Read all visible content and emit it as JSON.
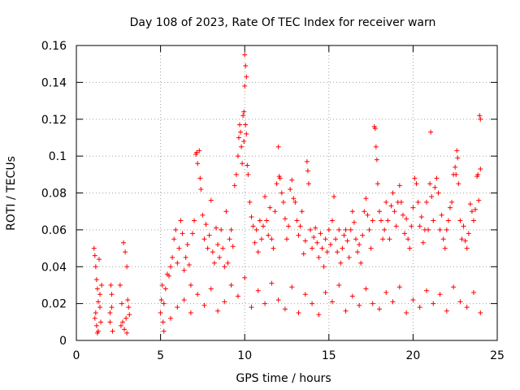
{
  "chart_data": {
    "type": "scatter",
    "title": "Day 108 of 2023, Rate Of TEC Index for receiver warn",
    "xlabel": "GPS time / hours",
    "ylabel": "ROTI / TECUs",
    "xlim": [
      0,
      25
    ],
    "ylim": [
      0,
      0.16
    ],
    "xticks": [
      0,
      5,
      10,
      15,
      20,
      25
    ],
    "yticks": [
      0,
      0.02,
      0.04,
      0.06,
      0.08,
      0.1,
      0.12,
      0.14,
      0.16
    ],
    "xtick_labels": [
      "0",
      "5",
      "10",
      "15",
      "20",
      "25"
    ],
    "ytick_labels": [
      "0",
      "0.02",
      "0.04",
      "0.06",
      "0.08",
      "0.1",
      "0.12",
      "0.14",
      "0.16"
    ],
    "grid": true,
    "marker": "+",
    "color": "#ff0000",
    "series": [
      {
        "points": [
          [
            1.05,
            0.05
          ],
          [
            1.1,
            0.046
          ],
          [
            1.15,
            0.04
          ],
          [
            1.2,
            0.033
          ],
          [
            1.25,
            0.028
          ],
          [
            1.3,
            0.021
          ],
          [
            1.35,
            0.044
          ],
          [
            1.4,
            0.018
          ],
          [
            1.1,
            0.012
          ],
          [
            1.2,
            0.008
          ],
          [
            1.3,
            0.005
          ],
          [
            1.4,
            0.025
          ],
          [
            1.5,
            0.03
          ],
          [
            1.15,
            0.015
          ],
          [
            1.45,
            0.01
          ],
          [
            1.25,
            0.004
          ],
          [
            2.0,
            0.015
          ],
          [
            2.05,
            0.03
          ],
          [
            2.1,
            0.025
          ],
          [
            2.15,
            0.005
          ],
          [
            2.0,
            0.01
          ],
          [
            2.1,
            0.018
          ],
          [
            2.6,
            0.03
          ],
          [
            2.7,
            0.02
          ],
          [
            2.8,
            0.053
          ],
          [
            2.9,
            0.048
          ],
          [
            3.0,
            0.04
          ],
          [
            3.05,
            0.022
          ],
          [
            3.1,
            0.018
          ],
          [
            2.75,
            0.01
          ],
          [
            2.85,
            0.006
          ],
          [
            2.95,
            0.012
          ],
          [
            3.15,
            0.014
          ],
          [
            2.65,
            0.008
          ],
          [
            3.0,
            0.004
          ],
          [
            5.0,
            0.015
          ],
          [
            5.05,
            0.022
          ],
          [
            5.1,
            0.03
          ],
          [
            5.15,
            0.01
          ],
          [
            5.2,
            0.005
          ],
          [
            5.3,
            0.028
          ],
          [
            5.4,
            0.036
          ],
          [
            5.5,
            0.035
          ],
          [
            5.6,
            0.04
          ],
          [
            5.7,
            0.045
          ],
          [
            5.8,
            0.055
          ],
          [
            5.9,
            0.06
          ],
          [
            6.0,
            0.042
          ],
          [
            6.1,
            0.05
          ],
          [
            6.2,
            0.065
          ],
          [
            6.3,
            0.058
          ],
          [
            6.4,
            0.038
          ],
          [
            6.5,
            0.045
          ],
          [
            6.6,
            0.052
          ],
          [
            6.7,
            0.041
          ],
          [
            6.8,
            0.03
          ],
          [
            6.9,
            0.058
          ],
          [
            7.0,
            0.065
          ],
          [
            7.1,
            0.101
          ],
          [
            7.15,
            0.102
          ],
          [
            7.2,
            0.096
          ],
          [
            7.3,
            0.103
          ],
          [
            7.35,
            0.088
          ],
          [
            7.4,
            0.082
          ],
          [
            7.5,
            0.068
          ],
          [
            7.6,
            0.055
          ],
          [
            7.7,
            0.063
          ],
          [
            7.8,
            0.05
          ],
          [
            7.9,
            0.057
          ],
          [
            8.0,
            0.076
          ],
          [
            8.1,
            0.048
          ],
          [
            8.2,
            0.042
          ],
          [
            8.3,
            0.061
          ],
          [
            8.4,
            0.052
          ],
          [
            8.5,
            0.045
          ],
          [
            8.6,
            0.06
          ],
          [
            8.7,
            0.05
          ],
          [
            8.8,
            0.04
          ],
          [
            8.9,
            0.07
          ],
          [
            9.0,
            0.042
          ],
          [
            9.1,
            0.055
          ],
          [
            9.2,
            0.06
          ],
          [
            9.3,
            0.051
          ],
          [
            9.4,
            0.084
          ],
          [
            9.5,
            0.09
          ],
          [
            9.6,
            0.1
          ],
          [
            9.65,
            0.11
          ],
          [
            9.7,
            0.117
          ],
          [
            9.75,
            0.113
          ],
          [
            9.8,
            0.105
          ],
          [
            9.85,
            0.096
          ],
          [
            9.9,
            0.122
          ],
          [
            9.95,
            0.124
          ],
          [
            10.0,
            0.155
          ],
          [
            10.05,
            0.149
          ],
          [
            10.1,
            0.143
          ],
          [
            10.0,
            0.138
          ],
          [
            10.05,
            0.117
          ],
          [
            10.1,
            0.112
          ],
          [
            9.95,
            0.108
          ],
          [
            10.15,
            0.095
          ],
          [
            10.2,
            0.09
          ],
          [
            10.3,
            0.075
          ],
          [
            10.4,
            0.067
          ],
          [
            10.5,
            0.062
          ],
          [
            10.6,
            0.053
          ],
          [
            10.7,
            0.06
          ],
          [
            10.8,
            0.048
          ],
          [
            10.9,
            0.065
          ],
          [
            11.0,
            0.055
          ],
          [
            11.1,
            0.062
          ],
          [
            11.2,
            0.078
          ],
          [
            11.3,
            0.065
          ],
          [
            11.4,
            0.057
          ],
          [
            11.5,
            0.072
          ],
          [
            11.6,
            0.055
          ],
          [
            11.7,
            0.05
          ],
          [
            11.8,
            0.07
          ],
          [
            11.9,
            0.085
          ],
          [
            12.0,
            0.105
          ],
          [
            12.05,
            0.089
          ],
          [
            12.1,
            0.088
          ],
          [
            12.2,
            0.08
          ],
          [
            12.3,
            0.075
          ],
          [
            12.4,
            0.066
          ],
          [
            12.5,
            0.055
          ],
          [
            12.6,
            0.062
          ],
          [
            12.7,
            0.082
          ],
          [
            12.8,
            0.087
          ],
          [
            12.9,
            0.077
          ],
          [
            13.0,
            0.075
          ],
          [
            13.1,
            0.065
          ],
          [
            13.2,
            0.057
          ],
          [
            13.3,
            0.062
          ],
          [
            13.4,
            0.07
          ],
          [
            13.5,
            0.047
          ],
          [
            13.6,
            0.054
          ],
          [
            13.7,
            0.097
          ],
          [
            13.75,
            0.092
          ],
          [
            13.8,
            0.085
          ],
          [
            13.9,
            0.06
          ],
          [
            14.0,
            0.05
          ],
          [
            14.1,
            0.056
          ],
          [
            14.2,
            0.061
          ],
          [
            14.3,
            0.053
          ],
          [
            14.4,
            0.045
          ],
          [
            14.5,
            0.058
          ],
          [
            14.6,
            0.05
          ],
          [
            14.7,
            0.04
          ],
          [
            14.8,
            0.055
          ],
          [
            14.9,
            0.048
          ],
          [
            15.0,
            0.06
          ],
          [
            15.1,
            0.052
          ],
          [
            15.2,
            0.065
          ],
          [
            15.3,
            0.078
          ],
          [
            15.4,
            0.055
          ],
          [
            15.5,
            0.048
          ],
          [
            15.6,
            0.06
          ],
          [
            15.7,
            0.042
          ],
          [
            15.8,
            0.05
          ],
          [
            15.9,
            0.057
          ],
          [
            16.0,
            0.06
          ],
          [
            16.1,
            0.054
          ],
          [
            16.2,
            0.045
          ],
          [
            16.3,
            0.06
          ],
          [
            16.4,
            0.07
          ],
          [
            16.5,
            0.064
          ],
          [
            16.6,
            0.055
          ],
          [
            16.7,
            0.048
          ],
          [
            16.8,
            0.052
          ],
          [
            16.9,
            0.042
          ],
          [
            17.0,
            0.057
          ],
          [
            17.1,
            0.07
          ],
          [
            17.2,
            0.077
          ],
          [
            17.3,
            0.068
          ],
          [
            17.4,
            0.06
          ],
          [
            17.5,
            0.05
          ],
          [
            17.6,
            0.065
          ],
          [
            17.7,
            0.116
          ],
          [
            17.75,
            0.115
          ],
          [
            17.8,
            0.105
          ],
          [
            17.85,
            0.098
          ],
          [
            17.9,
            0.085
          ],
          [
            18.0,
            0.07
          ],
          [
            18.1,
            0.065
          ],
          [
            18.2,
            0.055
          ],
          [
            18.3,
            0.06
          ],
          [
            18.4,
            0.075
          ],
          [
            18.5,
            0.065
          ],
          [
            18.6,
            0.055
          ],
          [
            18.7,
            0.073
          ],
          [
            18.8,
            0.08
          ],
          [
            18.9,
            0.07
          ],
          [
            19.0,
            0.062
          ],
          [
            19.1,
            0.075
          ],
          [
            19.2,
            0.084
          ],
          [
            19.3,
            0.075
          ],
          [
            19.4,
            0.068
          ],
          [
            19.5,
            0.058
          ],
          [
            19.6,
            0.066
          ],
          [
            19.7,
            0.055
          ],
          [
            19.8,
            0.05
          ],
          [
            19.9,
            0.062
          ],
          [
            20.0,
            0.072
          ],
          [
            20.1,
            0.088
          ],
          [
            20.2,
            0.085
          ],
          [
            20.3,
            0.075
          ],
          [
            20.4,
            0.062
          ],
          [
            20.5,
            0.067
          ],
          [
            20.6,
            0.053
          ],
          [
            20.7,
            0.06
          ],
          [
            20.8,
            0.075
          ],
          [
            20.9,
            0.06
          ],
          [
            21.0,
            0.085
          ],
          [
            21.05,
            0.113
          ],
          [
            21.1,
            0.078
          ],
          [
            21.2,
            0.065
          ],
          [
            21.3,
            0.083
          ],
          [
            21.4,
            0.088
          ],
          [
            21.5,
            0.08
          ],
          [
            21.6,
            0.06
          ],
          [
            21.7,
            0.068
          ],
          [
            21.8,
            0.055
          ],
          [
            21.9,
            0.05
          ],
          [
            22.0,
            0.06
          ],
          [
            22.1,
            0.065
          ],
          [
            22.2,
            0.072
          ],
          [
            22.3,
            0.075
          ],
          [
            22.4,
            0.09
          ],
          [
            22.5,
            0.094
          ],
          [
            22.55,
            0.09
          ],
          [
            22.6,
            0.103
          ],
          [
            22.65,
            0.099
          ],
          [
            22.7,
            0.085
          ],
          [
            22.8,
            0.065
          ],
          [
            22.9,
            0.055
          ],
          [
            23.0,
            0.062
          ],
          [
            23.1,
            0.054
          ],
          [
            23.2,
            0.05
          ],
          [
            23.3,
            0.058
          ],
          [
            23.4,
            0.074
          ],
          [
            23.5,
            0.07
          ],
          [
            23.6,
            0.065
          ],
          [
            23.7,
            0.071
          ],
          [
            23.8,
            0.089
          ],
          [
            23.85,
            0.09
          ],
          [
            23.9,
            0.076
          ],
          [
            23.95,
            0.122
          ],
          [
            24.0,
            0.12
          ],
          [
            24.0,
            0.093
          ],
          [
            5.2,
            0.02
          ],
          [
            5.6,
            0.012
          ],
          [
            6.0,
            0.018
          ],
          [
            6.4,
            0.022
          ],
          [
            6.8,
            0.015
          ],
          [
            7.2,
            0.025
          ],
          [
            7.6,
            0.019
          ],
          [
            8.0,
            0.028
          ],
          [
            8.4,
            0.016
          ],
          [
            8.8,
            0.021
          ],
          [
            9.2,
            0.03
          ],
          [
            9.6,
            0.024
          ],
          [
            10.0,
            0.034
          ],
          [
            10.4,
            0.018
          ],
          [
            10.8,
            0.027
          ],
          [
            11.2,
            0.02
          ],
          [
            11.6,
            0.031
          ],
          [
            12.0,
            0.022
          ],
          [
            12.4,
            0.017
          ],
          [
            12.8,
            0.029
          ],
          [
            13.2,
            0.015
          ],
          [
            13.6,
            0.025
          ],
          [
            14.0,
            0.02
          ],
          [
            14.4,
            0.014
          ],
          [
            14.8,
            0.026
          ],
          [
            15.2,
            0.021
          ],
          [
            15.6,
            0.03
          ],
          [
            16.0,
            0.016
          ],
          [
            16.4,
            0.024
          ],
          [
            16.8,
            0.019
          ],
          [
            17.2,
            0.028
          ],
          [
            17.6,
            0.02
          ],
          [
            18.0,
            0.017
          ],
          [
            18.4,
            0.026
          ],
          [
            18.8,
            0.021
          ],
          [
            19.2,
            0.029
          ],
          [
            19.6,
            0.015
          ],
          [
            20.0,
            0.022
          ],
          [
            20.4,
            0.018
          ],
          [
            20.8,
            0.027
          ],
          [
            21.2,
            0.02
          ],
          [
            21.6,
            0.025
          ],
          [
            22.0,
            0.016
          ],
          [
            22.4,
            0.029
          ],
          [
            22.8,
            0.021
          ],
          [
            23.2,
            0.018
          ],
          [
            23.6,
            0.026
          ],
          [
            24.0,
            0.015
          ]
        ]
      }
    ]
  }
}
